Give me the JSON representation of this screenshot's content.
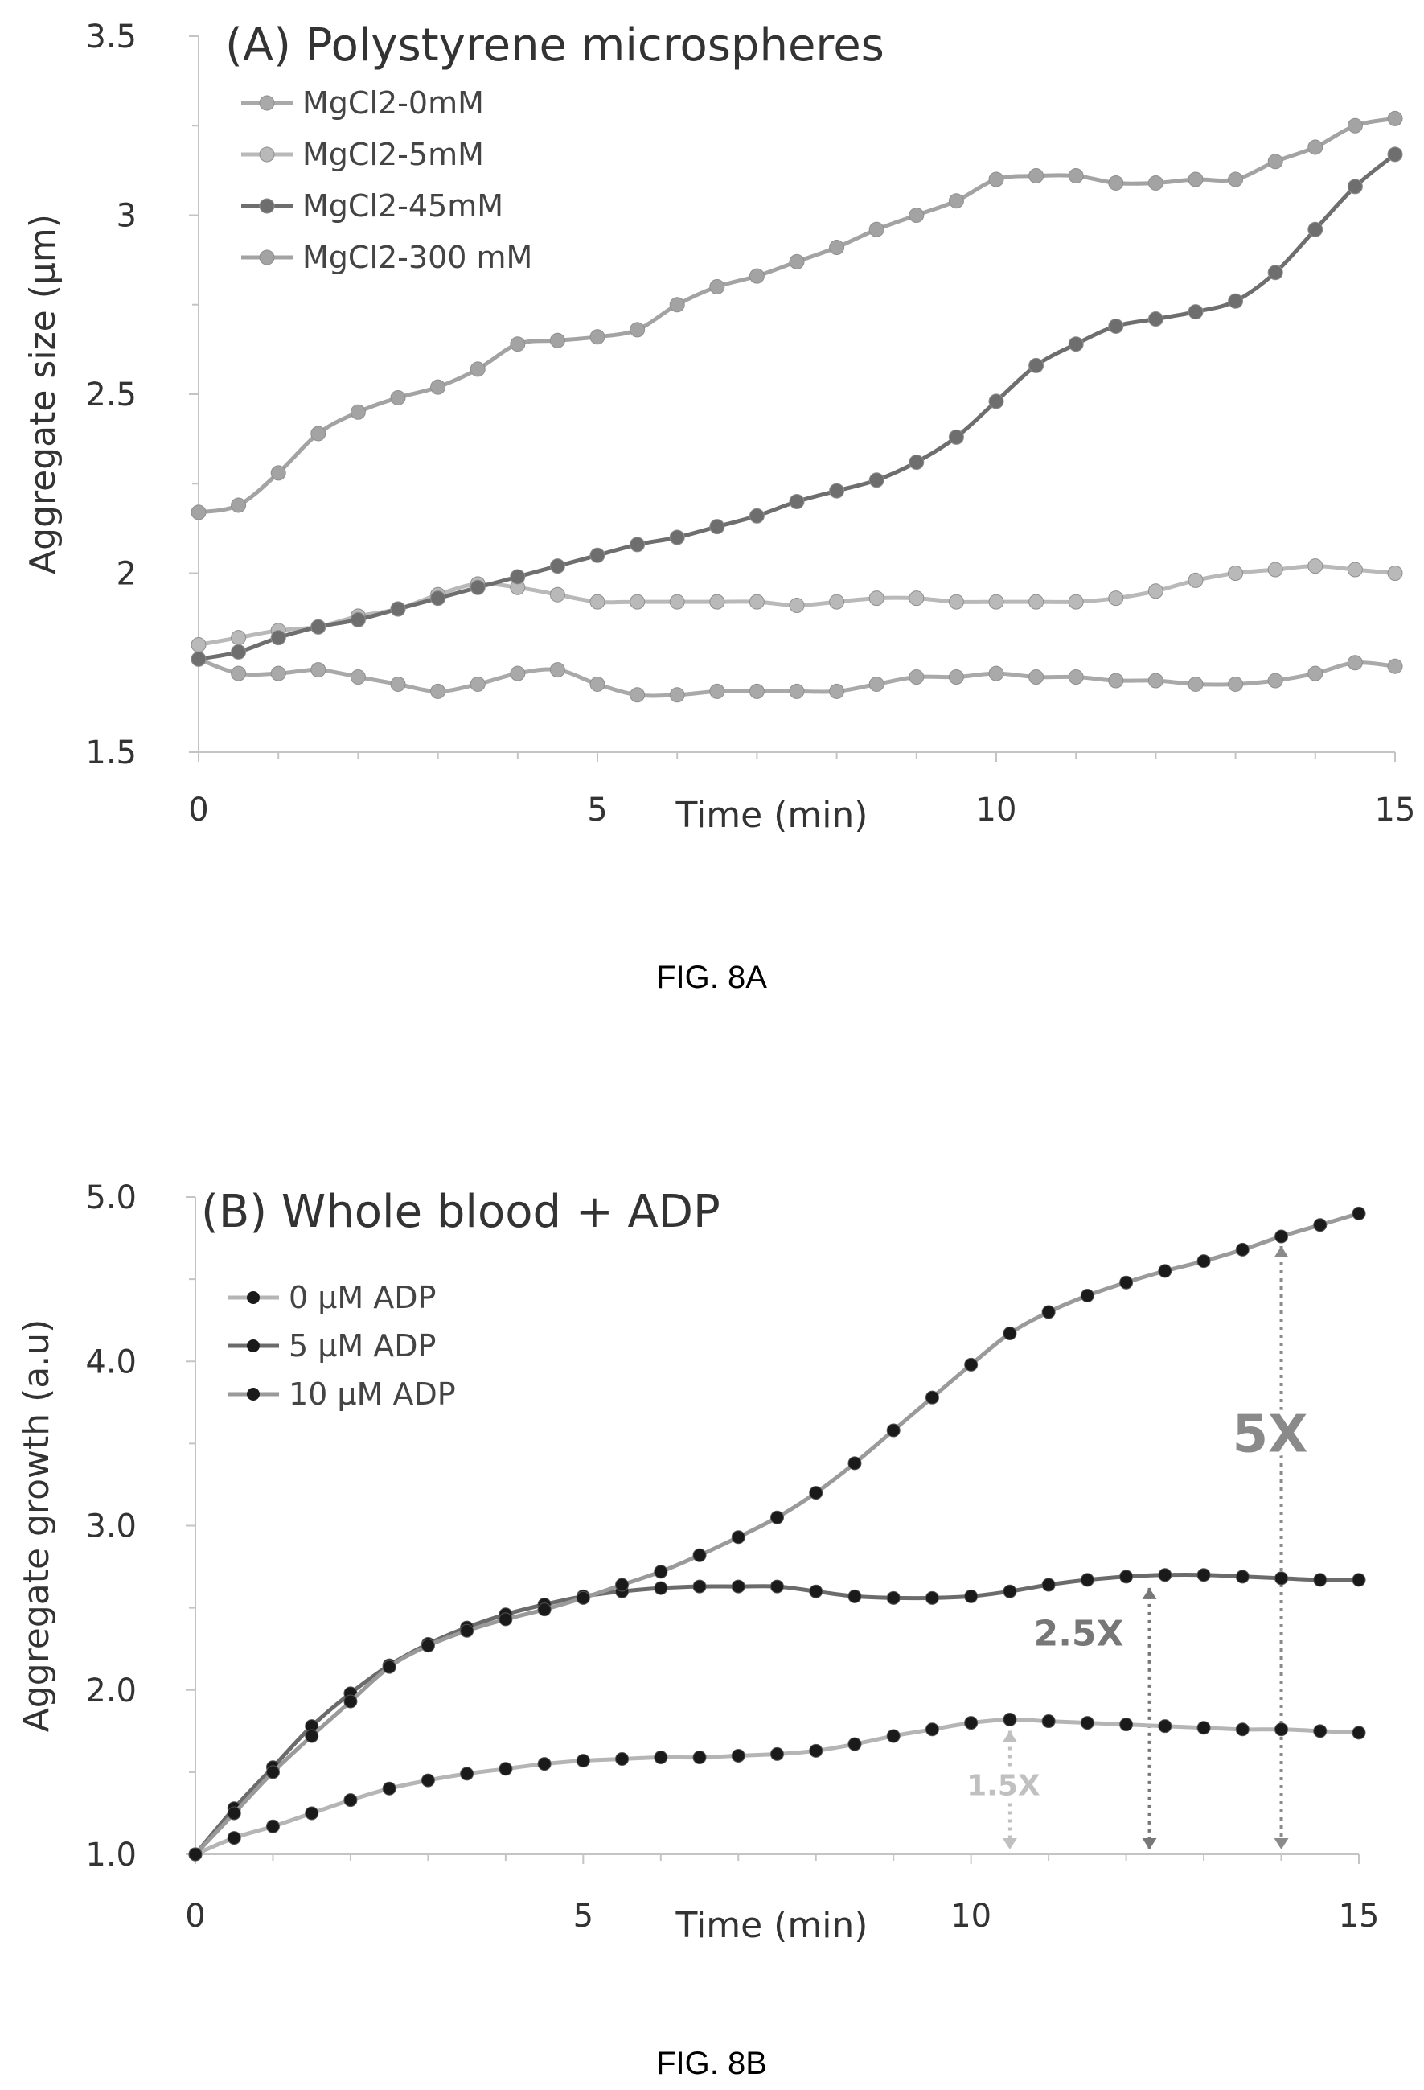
{
  "chart_data": [
    {
      "type": "line",
      "title": "(A) Polystyrene microspheres",
      "xlabel": "Time (min)",
      "ylabel": "Aggregate size (µm)",
      "xlim": [
        0,
        15
      ],
      "ylim": [
        1.5,
        3.5
      ],
      "xticks": [
        "0",
        "5",
        "10",
        "15"
      ],
      "yticks": [
        "1.5",
        "2",
        "2.5",
        "3",
        "3.5"
      ],
      "grid": false,
      "legend_position": "top-left",
      "x": [
        0,
        0.5,
        1,
        1.5,
        2,
        2.5,
        3,
        3.5,
        4,
        4.5,
        5,
        5.5,
        6,
        6.5,
        7,
        7.5,
        8,
        8.5,
        9,
        9.5,
        10,
        10.5,
        11,
        11.5,
        12,
        12.5,
        13,
        13.5,
        14,
        14.5,
        15
      ],
      "series": [
        {
          "name": "MgCl2-0mM",
          "color": "#a9a9a9",
          "values": [
            1.76,
            1.72,
            1.72,
            1.73,
            1.71,
            1.69,
            1.67,
            1.69,
            1.72,
            1.73,
            1.69,
            1.66,
            1.66,
            1.67,
            1.67,
            1.67,
            1.67,
            1.69,
            1.71,
            1.71,
            1.72,
            1.71,
            1.71,
            1.7,
            1.7,
            1.69,
            1.69,
            1.7,
            1.72,
            1.75,
            1.74
          ]
        },
        {
          "name": "MgCl2-5mM",
          "color": "#b9b9b9",
          "values": [
            1.8,
            1.82,
            1.84,
            1.85,
            1.88,
            1.9,
            1.94,
            1.97,
            1.96,
            1.94,
            1.92,
            1.92,
            1.92,
            1.92,
            1.92,
            1.91,
            1.92,
            1.93,
            1.93,
            1.92,
            1.92,
            1.92,
            1.92,
            1.93,
            1.95,
            1.98,
            2.0,
            2.01,
            2.02,
            2.01,
            2.0
          ]
        },
        {
          "name": "MgCl2-45mM",
          "color": "#6e6e6e",
          "values": [
            1.76,
            1.78,
            1.82,
            1.85,
            1.87,
            1.9,
            1.93,
            1.96,
            1.99,
            2.02,
            2.05,
            2.08,
            2.1,
            2.13,
            2.16,
            2.2,
            2.23,
            2.26,
            2.31,
            2.38,
            2.48,
            2.58,
            2.64,
            2.69,
            2.71,
            2.73,
            2.76,
            2.84,
            2.96,
            3.08,
            3.17
          ]
        },
        {
          "name": "MgCl2-300 mM",
          "color": "#a3a3a3",
          "values": [
            2.17,
            2.19,
            2.28,
            2.39,
            2.45,
            2.49,
            2.52,
            2.57,
            2.64,
            2.65,
            2.66,
            2.68,
            2.75,
            2.8,
            2.83,
            2.87,
            2.91,
            2.96,
            3.0,
            3.04,
            3.1,
            3.11,
            3.11,
            3.09,
            3.09,
            3.1,
            3.1,
            3.15,
            3.19,
            3.25,
            3.27
          ]
        }
      ],
      "caption": "FIG. 8A"
    },
    {
      "type": "line",
      "title": "(B) Whole blood + ADP",
      "xlabel": "Time (min)",
      "ylabel": "Aggregate growth (a.u)",
      "xlim": [
        0,
        15
      ],
      "ylim": [
        1.0,
        5.0
      ],
      "xticks": [
        "0",
        "5",
        "10",
        "15"
      ],
      "yticks": [
        "1.0",
        "2.0",
        "3.0",
        "4.0",
        "5.0"
      ],
      "grid": false,
      "legend_position": "top-left",
      "x": [
        0,
        0.5,
        1,
        1.5,
        2,
        2.5,
        3,
        3.5,
        4,
        4.5,
        5,
        5.5,
        6,
        6.5,
        7,
        7.5,
        8,
        8.5,
        9,
        9.5,
        10,
        10.5,
        11,
        11.5,
        12,
        12.5,
        13,
        13.5,
        14,
        14.5,
        15
      ],
      "series": [
        {
          "name": "0 µM ADP",
          "color": "#b5b5b5",
          "values": [
            1.0,
            1.1,
            1.17,
            1.25,
            1.33,
            1.4,
            1.45,
            1.49,
            1.52,
            1.55,
            1.57,
            1.58,
            1.59,
            1.59,
            1.6,
            1.61,
            1.63,
            1.67,
            1.72,
            1.76,
            1.8,
            1.82,
            1.81,
            1.8,
            1.79,
            1.78,
            1.77,
            1.76,
            1.76,
            1.75,
            1.74
          ]
        },
        {
          "name": "5 µM ADP",
          "color": "#6b6b6b",
          "values": [
            1.0,
            1.28,
            1.53,
            1.78,
            1.98,
            2.15,
            2.28,
            2.38,
            2.46,
            2.52,
            2.57,
            2.6,
            2.62,
            2.63,
            2.63,
            2.63,
            2.6,
            2.57,
            2.56,
            2.56,
            2.57,
            2.6,
            2.64,
            2.67,
            2.69,
            2.7,
            2.7,
            2.69,
            2.68,
            2.67,
            2.67
          ]
        },
        {
          "name": "10  µM ADP",
          "color": "#9a9a9a",
          "values": [
            1.0,
            1.25,
            1.5,
            1.72,
            1.93,
            2.14,
            2.27,
            2.36,
            2.43,
            2.49,
            2.56,
            2.64,
            2.72,
            2.82,
            2.93,
            3.05,
            3.2,
            3.38,
            3.58,
            3.78,
            3.98,
            4.17,
            4.3,
            4.4,
            4.48,
            4.55,
            4.61,
            4.68,
            4.76,
            4.83,
            4.9
          ]
        }
      ],
      "annotations": [
        {
          "label": "1.5X",
          "x": 10.5,
          "from": 1.0,
          "to": 1.82,
          "color": "#c0c0c0"
        },
        {
          "label": "2.5X",
          "x": 12.3,
          "from": 1.0,
          "to": 2.69,
          "color": "#777777"
        },
        {
          "label": "5X",
          "x": 14.0,
          "from": 1.0,
          "to": 4.77,
          "color": "#8a8a8a"
        }
      ],
      "caption": "FIG. 8B"
    }
  ]
}
